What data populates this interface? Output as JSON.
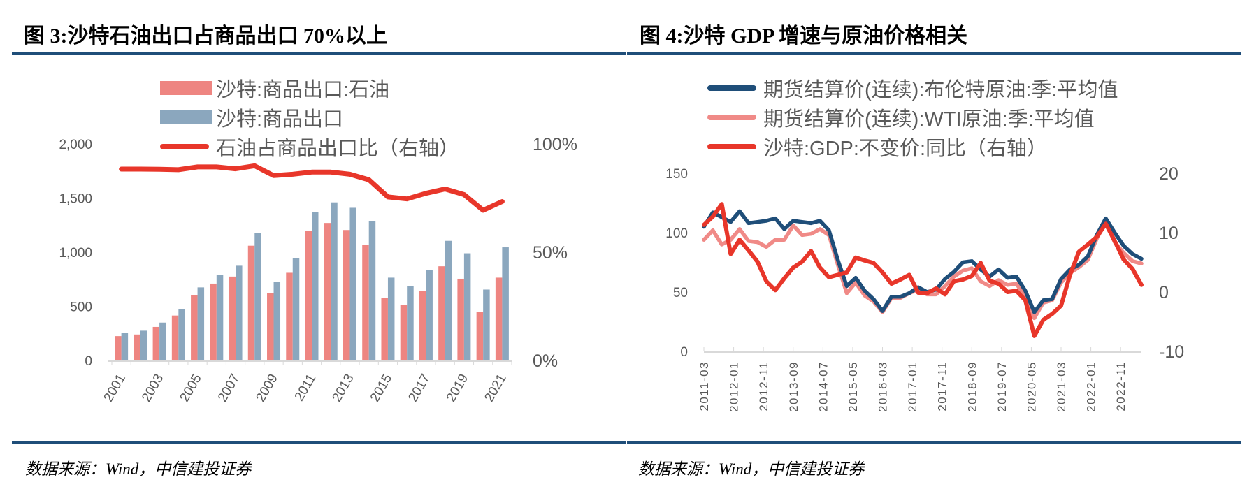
{
  "left": {
    "title": "图 3:沙特石油出口占商品出口 70%以上",
    "source": "数据来源：Wind，中信建投证券"
  },
  "right": {
    "title": "图 4:沙特 GDP 增速与原油价格相关",
    "source": "数据来源：Wind，中信建投证券"
  },
  "chart_data": [
    {
      "type": "bar",
      "title": "图 3:沙特石油出口占商品出口 70%以上",
      "categories": [
        "2001",
        "2002",
        "2003",
        "2004",
        "2005",
        "2006",
        "2007",
        "2008",
        "2009",
        "2010",
        "2011",
        "2012",
        "2013",
        "2014",
        "2015",
        "2016",
        "2017",
        "2018",
        "2019",
        "2020",
        "2021"
      ],
      "x_tick_labels": [
        "2001",
        "2003",
        "2005",
        "2007",
        "2009",
        "2011",
        "2013",
        "2015",
        "2017",
        "2019",
        "2021"
      ],
      "series": [
        {
          "name": "沙特:商品出口:石油",
          "type": "bar",
          "axis": "left",
          "color": "#EE8581",
          "values": [
            225,
            240,
            310,
            415,
            600,
            710,
            775,
            1060,
            620,
            810,
            1195,
            1270,
            1205,
            1070,
            575,
            510,
            645,
            870,
            755,
            450,
            765
          ]
        },
        {
          "name": "沙特:商品出口",
          "type": "bar",
          "axis": "left",
          "color": "#8BA7BE",
          "values": [
            255,
            275,
            350,
            475,
            675,
            790,
            875,
            1180,
            725,
            945,
            1370,
            1460,
            1410,
            1285,
            765,
            690,
            835,
            1105,
            990,
            655,
            1045
          ]
        },
        {
          "name": "石油占商品出口比（右轴）",
          "type": "line",
          "axis": "right",
          "color": "#E8362A",
          "values": [
            88.4,
            88.4,
            88.3,
            88.1,
            89.4,
            89.4,
            88.5,
            89.9,
            85.4,
            86.0,
            87.0,
            87.0,
            86.0,
            83.5,
            75.5,
            74.6,
            77.2,
            79.2,
            76.6,
            69.4,
            73.4
          ]
        }
      ],
      "left_axis": {
        "ylim": [
          0,
          2000
        ],
        "ticks": [
          "0",
          "500",
          "1,000",
          "1,500",
          "2,000"
        ]
      },
      "right_axis": {
        "ylim": [
          0,
          100
        ],
        "ticks": [
          "0%",
          "50%",
          "100%"
        ]
      },
      "legend": "top",
      "grid": false
    },
    {
      "type": "line",
      "title": "图 4:沙特 GDP 增速与原油价格相关",
      "x": [
        "2011-03",
        "2011-06",
        "2011-09",
        "2011-12",
        "2012-03",
        "2012-06",
        "2012-09",
        "2012-12",
        "2013-03",
        "2013-06",
        "2013-09",
        "2013-12",
        "2014-03",
        "2014-06",
        "2014-09",
        "2014-12",
        "2015-03",
        "2015-06",
        "2015-09",
        "2015-12",
        "2016-03",
        "2016-06",
        "2016-09",
        "2016-12",
        "2017-03",
        "2017-06",
        "2017-09",
        "2017-12",
        "2018-03",
        "2018-06",
        "2018-09",
        "2018-12",
        "2019-03",
        "2019-06",
        "2019-09",
        "2019-12",
        "2020-03",
        "2020-06",
        "2020-09",
        "2020-12",
        "2021-03",
        "2021-06",
        "2021-09",
        "2021-12",
        "2022-03",
        "2022-06",
        "2022-09",
        "2022-12",
        "2023-03",
        "2023-06"
      ],
      "x_tick_labels": [
        "2011-03",
        "2012-01",
        "2012-11",
        "2013-09",
        "2014-07",
        "2015-05",
        "2016-03",
        "2017-01",
        "2017-11",
        "2018-09",
        "2019-07",
        "2020-05",
        "2021-03",
        "2022-01",
        "2022-11"
      ],
      "series": [
        {
          "name": "期货结算价(连续):布伦特原油:季:平均值",
          "axis": "left",
          "color": "#1F4E79",
          "values": [
            105,
            117,
            113,
            109,
            118,
            108,
            109,
            110,
            112,
            103,
            110,
            109,
            108,
            110,
            102,
            77,
            55,
            62,
            51,
            44,
            34,
            46,
            46,
            49,
            54,
            50,
            52,
            61,
            67,
            75,
            76,
            69,
            63,
            69,
            62,
            63,
            51,
            33,
            43,
            44,
            61,
            69,
            73,
            80,
            98,
            112,
            100,
            89,
            82,
            78
          ]
        },
        {
          "name": "期货结算价(连续):WTI原油:季:平均值",
          "axis": "left",
          "color": "#F08A87",
          "values": [
            94,
            102,
            90,
            94,
            103,
            93,
            92,
            88,
            94,
            94,
            106,
            98,
            99,
            103,
            98,
            73,
            49,
            58,
            47,
            42,
            33,
            45,
            45,
            49,
            52,
            48,
            48,
            55,
            63,
            68,
            70,
            59,
            55,
            60,
            56,
            57,
            46,
            28,
            41,
            43,
            58,
            66,
            71,
            77,
            95,
            109,
            92,
            83,
            76,
            74
          ]
        },
        {
          "name": "沙特:GDP:不变价:同比（右轴）",
          "axis": "right",
          "color": "#E8362A",
          "values": [
            11.3,
            12.7,
            14.8,
            6.4,
            8.8,
            7.0,
            5.1,
            1.8,
            0.3,
            2.3,
            4.1,
            5.1,
            6.9,
            4.1,
            2.5,
            2.9,
            3.3,
            5.8,
            5.3,
            4.9,
            3.3,
            1.4,
            2.1,
            2.9,
            -0.1,
            -0.2,
            0.6,
            -0.4,
            1.8,
            2.1,
            2.7,
            4.9,
            1.9,
            1.4,
            0.0,
            0.2,
            -1.4,
            -7.4,
            -4.7,
            -3.7,
            -2.3,
            2.9,
            6.8,
            8.0,
            9.3,
            11.5,
            8.6,
            5.5,
            3.9,
            1.2
          ]
        }
      ],
      "left_axis": {
        "ylim": [
          0,
          150
        ],
        "ticks": [
          "0",
          "50",
          "100",
          "150"
        ]
      },
      "right_axis": {
        "ylim": [
          -10,
          20
        ],
        "ticks": [
          "-10",
          "0",
          "10",
          "20"
        ]
      },
      "legend": "top",
      "grid": false
    }
  ]
}
